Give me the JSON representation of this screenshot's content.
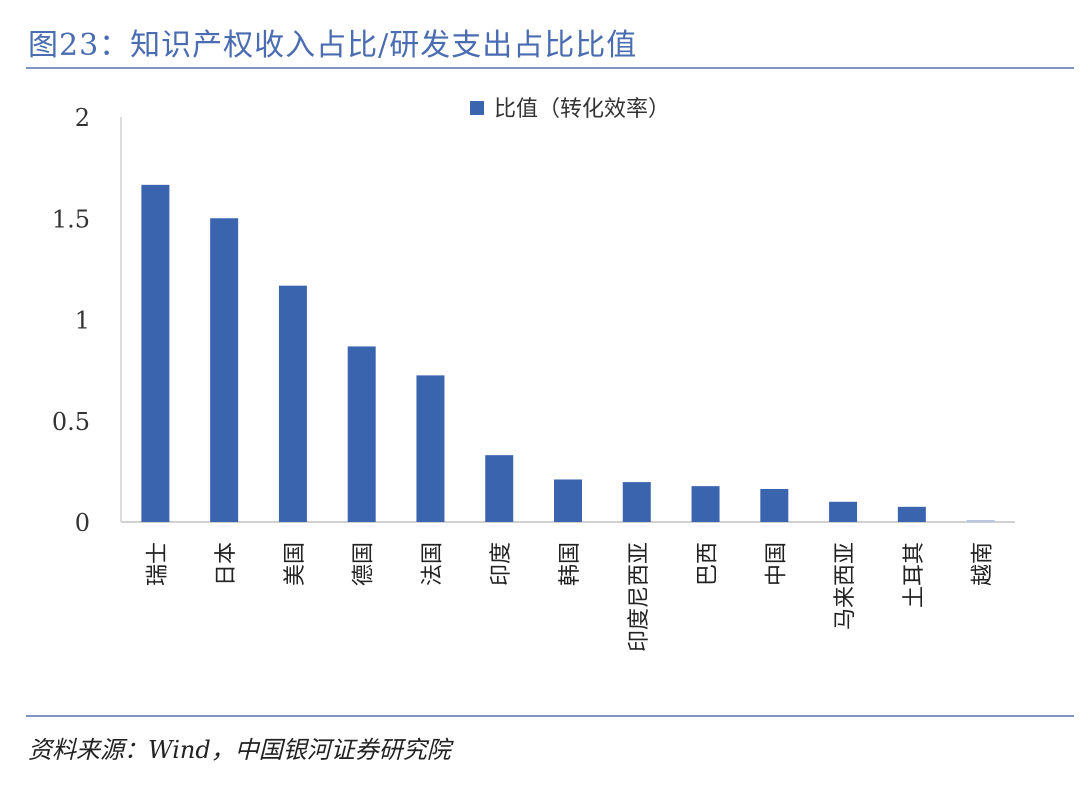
{
  "title": "图23：知识产权收入占比/研发支出占比比值",
  "source": "资料来源：Wind，中国银河证券研究院",
  "chart_data": {
    "type": "bar",
    "categories": [
      "瑞士",
      "日本",
      "美国",
      "德国",
      "法国",
      "印度",
      "韩国",
      "印度尼西亚",
      "巴西",
      "中国",
      "马来西亚",
      "土耳其",
      "越南"
    ],
    "series": [
      {
        "name": "比值（转化效率）",
        "values": [
          1.665,
          1.5,
          1.167,
          0.867,
          0.724,
          0.33,
          0.21,
          0.197,
          0.177,
          0.163,
          0.1,
          0.075,
          0.01
        ]
      }
    ],
    "ylim": [
      0,
      2
    ],
    "yticks": [
      0,
      0.5,
      1,
      1.5,
      2
    ],
    "ytick_labels": [
      "0",
      "0.5",
      "1",
      "1.5",
      "2"
    ],
    "legend": "top-center",
    "grid": false,
    "color": "#3a64ae"
  }
}
